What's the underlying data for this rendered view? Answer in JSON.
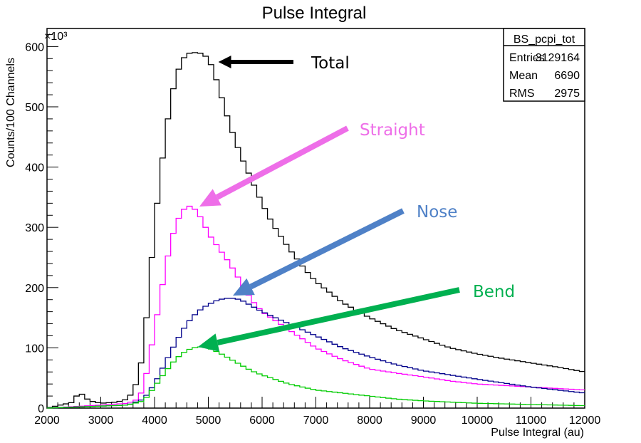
{
  "chart_data": {
    "type": "line",
    "title": "Pulse Integral",
    "xlabel": "Pulse Integral (au)",
    "ylabel": "Counts/100 Channels",
    "y_multiplier": "×10³",
    "xlim": [
      2000,
      12000
    ],
    "ylim": [
      0,
      630
    ],
    "x_ticks": [
      2000,
      3000,
      4000,
      5000,
      6000,
      7000,
      8000,
      9000,
      10000,
      11000,
      12000
    ],
    "y_ticks": [
      0,
      100,
      200,
      300,
      400,
      500,
      600
    ],
    "bin_width": 100,
    "grid": false,
    "legend": "none",
    "stats_box": {
      "name": "BS_pcpi_tot",
      "rows": [
        {
          "label": "Entries",
          "value": "3129164"
        },
        {
          "label": "Mean",
          "value": "6690"
        },
        {
          "label": "RMS",
          "value": "2975"
        }
      ]
    },
    "series": [
      {
        "name": "Total",
        "color": "#000000",
        "x": [
          2000,
          2500,
          2550,
          2600,
          2700,
          2800,
          3000,
          3300,
          3500,
          3600,
          3700,
          3800,
          3900,
          4000,
          4100,
          4200,
          4300,
          4400,
          4500,
          4600,
          4700,
          4800,
          4900,
          5000,
          5100,
          5200,
          5300,
          5400,
          5500,
          5600,
          5800,
          6000,
          6200,
          6500,
          6800,
          7000,
          7500,
          8000,
          8500,
          9000,
          9500,
          10000,
          10500,
          11000,
          11500,
          12000
        ],
        "values": [
          0,
          10,
          20,
          28,
          18,
          12,
          8,
          10,
          15,
          28,
          50,
          100,
          200,
          300,
          380,
          450,
          510,
          550,
          575,
          588,
          590,
          590,
          588,
          580,
          560,
          530,
          500,
          470,
          445,
          420,
          380,
          340,
          305,
          265,
          230,
          210,
          175,
          150,
          130,
          115,
          100,
          90,
          82,
          75,
          68,
          60
        ]
      },
      {
        "name": "Straight",
        "color": "#ff00ff",
        "x": [
          2000,
          3000,
          3500,
          3700,
          3800,
          3900,
          4000,
          4100,
          4200,
          4300,
          4400,
          4500,
          4600,
          4700,
          4800,
          4900,
          5000,
          5200,
          5400,
          5600,
          5800,
          6000,
          6500,
          7000,
          7500,
          8000,
          8500,
          9000,
          9500,
          10000,
          11000,
          12000
        ],
        "values": [
          0,
          5,
          8,
          15,
          35,
          80,
          130,
          180,
          230,
          275,
          305,
          325,
          335,
          335,
          325,
          310,
          290,
          265,
          240,
          210,
          180,
          160,
          130,
          100,
          80,
          65,
          58,
          52,
          45,
          40,
          35,
          30
        ]
      },
      {
        "name": "Nose",
        "color": "#00008b",
        "x": [
          2000,
          3500,
          3800,
          4000,
          4200,
          4400,
          4600,
          4800,
          5000,
          5200,
          5400,
          5600,
          5800,
          6000,
          6500,
          7000,
          7500,
          8000,
          8500,
          9000,
          9500,
          10000,
          11000,
          12000
        ],
        "values": [
          0,
          5,
          15,
          40,
          75,
          110,
          140,
          160,
          172,
          180,
          183,
          180,
          170,
          160,
          140,
          120,
          100,
          85,
          72,
          62,
          55,
          48,
          35,
          25
        ]
      },
      {
        "name": "Bend",
        "color": "#00cc00",
        "x": [
          2000,
          3500,
          3800,
          4000,
          4200,
          4400,
          4600,
          4800,
          5000,
          5200,
          5400,
          5600,
          5800,
          6000,
          6500,
          7000,
          7500,
          8000,
          8500,
          9000,
          9500,
          10000,
          11000,
          12000
        ],
        "values": [
          0,
          5,
          12,
          35,
          60,
          82,
          96,
          102,
          100,
          92,
          82,
          72,
          62,
          55,
          40,
          30,
          25,
          20,
          15,
          12,
          10,
          8,
          6,
          4
        ]
      }
    ],
    "annotations": [
      {
        "text": "Total",
        "color": "#000000",
        "arrow_color": "#000000"
      },
      {
        "text": "Straight",
        "color": "#ee6ee8",
        "arrow_color": "#ee6ee8"
      },
      {
        "text": "Nose",
        "color": "#4f81c7",
        "arrow_color": "#4f81c7"
      },
      {
        "text": "Bend",
        "color": "#00b050",
        "arrow_color": "#00b050"
      }
    ]
  }
}
